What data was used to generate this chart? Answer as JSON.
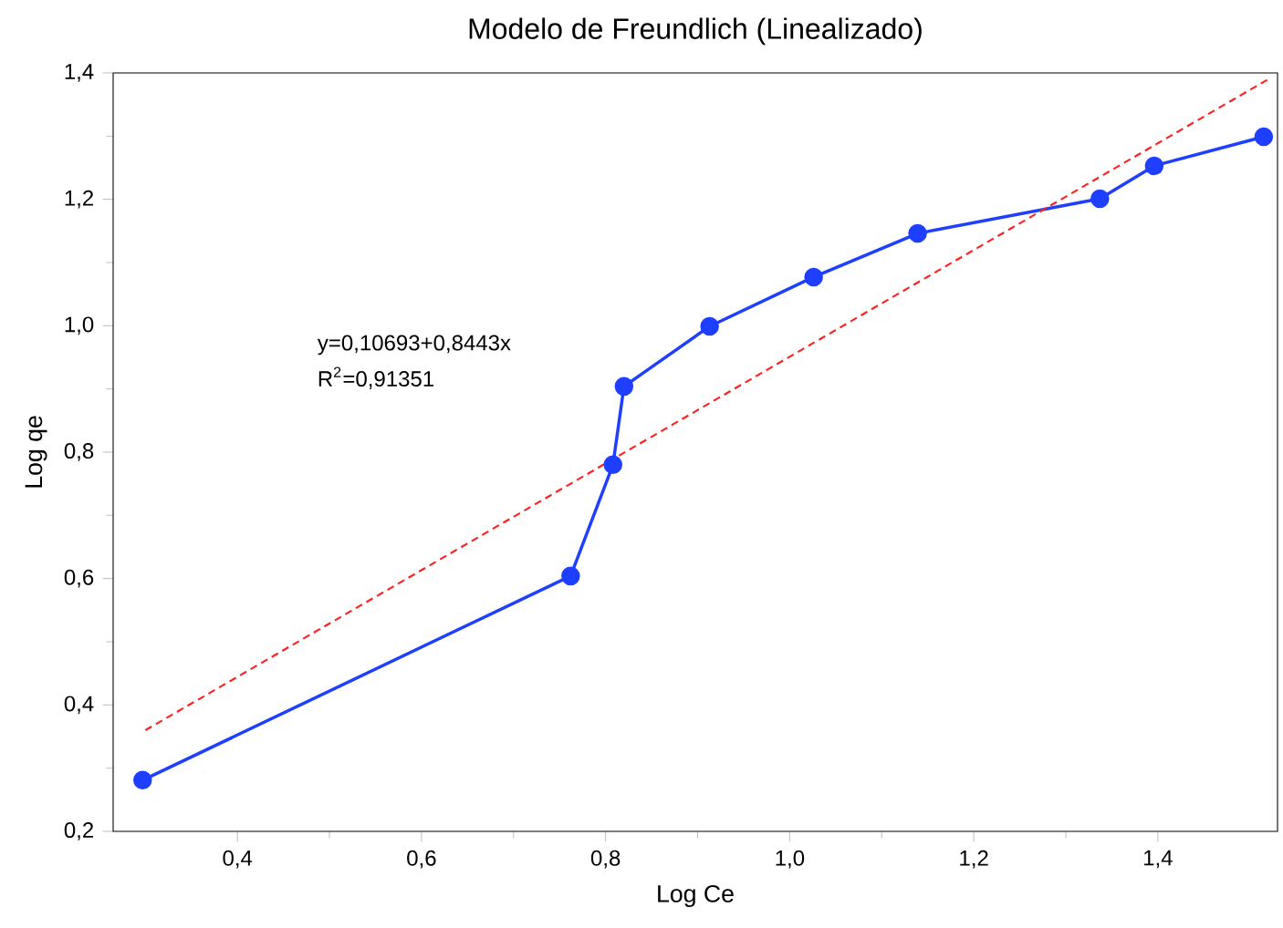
{
  "chart_data": {
    "type": "line",
    "title": "Modelo de Freundlich (Linealizado)",
    "xlabel": "Log Ce",
    "ylabel": "Log qe",
    "xlim": [
      0.265,
      1.53
    ],
    "ylim": [
      0.2,
      1.4
    ],
    "xticks": [
      {
        "value": 0.4,
        "label": "0,4"
      },
      {
        "value": 0.6,
        "label": "0,6"
      },
      {
        "value": 0.8,
        "label": "0,8"
      },
      {
        "value": 1.0,
        "label": "1,0"
      },
      {
        "value": 1.2,
        "label": "1,2"
      },
      {
        "value": 1.4,
        "label": "1,4"
      }
    ],
    "yticks": [
      {
        "value": 0.2,
        "label": "0,2"
      },
      {
        "value": 0.4,
        "label": "0,4"
      },
      {
        "value": 0.6,
        "label": "0,6"
      },
      {
        "value": 0.8,
        "label": "0,8"
      },
      {
        "value": 1.0,
        "label": "1,0"
      },
      {
        "value": 1.2,
        "label": "1,2"
      },
      {
        "value": 1.4,
        "label": "1,4"
      }
    ],
    "series": [
      {
        "color": "#1f3fff",
        "marker": "circle",
        "line_style": "solid",
        "x": [
          0.297,
          0.762,
          0.808,
          0.82,
          0.913,
          1.026,
          1.139,
          1.337,
          1.396,
          1.515
        ],
        "values": [
          0.281,
          0.604,
          0.78,
          0.904,
          0.999,
          1.077,
          1.146,
          1.201,
          1.253,
          1.299
        ]
      },
      {
        "color": "#ff2020",
        "marker": "none",
        "line_style": "dashed",
        "x": [
          0.3,
          1.52
        ],
        "values": [
          0.36,
          1.39
        ]
      }
    ],
    "annotations": [
      "y=0,10693+0,8443x",
      "R$^{2}$=0,91351"
    ],
    "grid": false
  }
}
